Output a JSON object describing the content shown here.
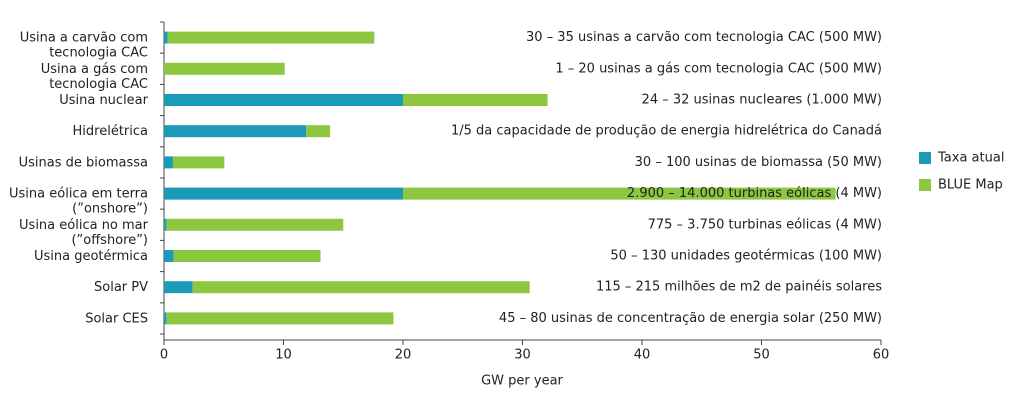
{
  "chart_data": {
    "type": "bar",
    "orientation": "horizontal",
    "stacked": true,
    "x_label": "GW per year",
    "categories": [
      "Usina a carvão com\ntecnologia CAC",
      "Usina a gás com\ntecnologia CAC",
      "Usina nuclear",
      "Hidrelétrica",
      "Usinas de biomassa",
      "Usina eólica em terra\n(”onshore”)",
      "Usina eólica no mar\n(”offshore”)",
      "Usina geotérmica",
      "Solar PV",
      "Solar CES"
    ],
    "series": [
      {
        "name": "Taxa atual",
        "color": "#1c9bb8",
        "values": [
          0.3,
          0,
          20,
          11.9,
          0.75,
          20,
          0.2,
          0.8,
          2.4,
          0.2
        ]
      },
      {
        "name": "BLUE Map",
        "color": "#8dc63f",
        "values": [
          17.3,
          10.1,
          12.1,
          2,
          4.3,
          36.2,
          14.8,
          12.3,
          28.2,
          19
        ]
      }
    ],
    "annotations": [
      "30 – 35 usinas a carvão com tecnologia CAC (500 MW)",
      "1 – 20 usinas a gás com tecnologia CAC (500 MW)",
      "24 – 32 usinas nucleares (1.000 MW)",
      "1/5 da capacidade de produção de energia hidrelétrica do Canadá",
      "30 – 100 usinas de biomassa (50 MW)",
      "2.900 – 14.000 turbinas eólicas (4 MW)",
      "775 – 3.750 turbinas eólicas (4 MW)",
      "50 – 130 unidades geotérmicas (100 MW)",
      "115 – 215 milhões de m2 de painéis solares",
      "45 – 80 usinas de concentração de energia solar (250 MW)"
    ],
    "xlim": [
      0,
      60
    ],
    "xticks": [
      0,
      10,
      20,
      30,
      40,
      50,
      60
    ],
    "legend": "right"
  }
}
